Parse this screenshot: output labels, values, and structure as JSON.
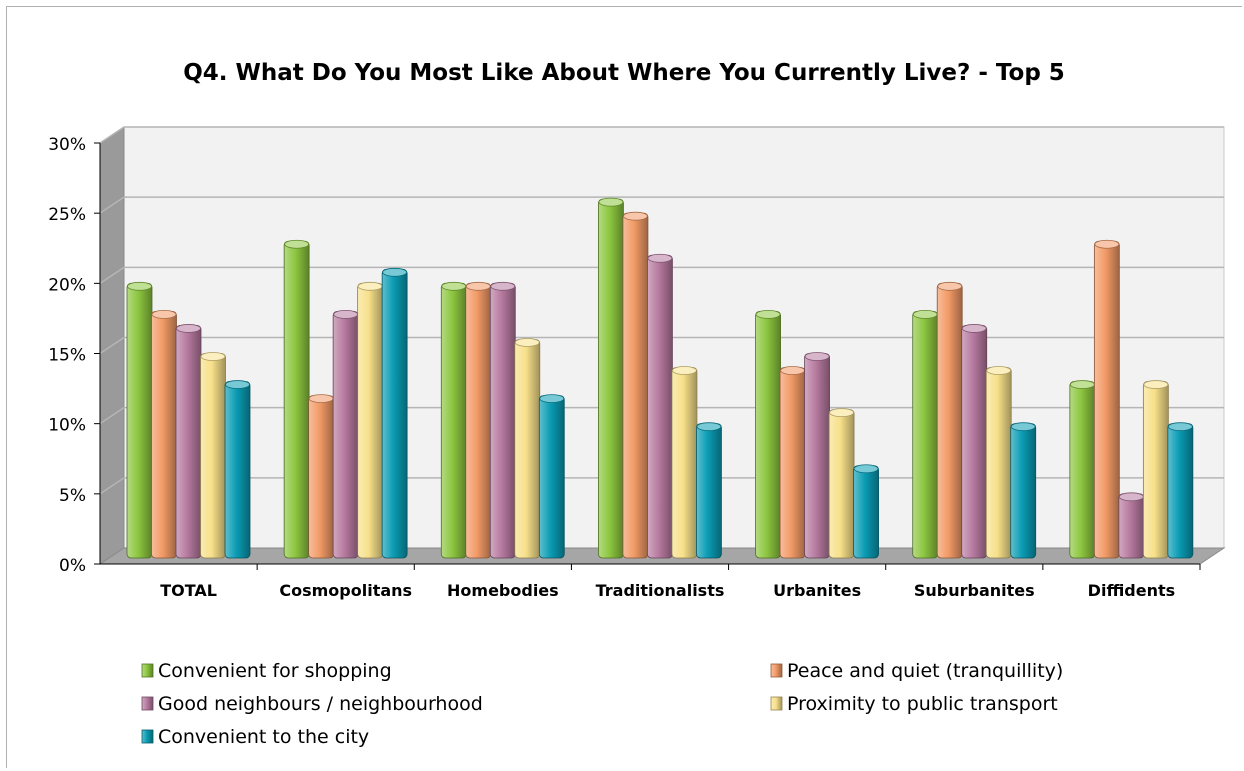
{
  "chart_data": {
    "type": "bar",
    "title": "Q4. What Do You Most Like About Where You Currently Live? - Top 5",
    "xlabel": "",
    "ylabel": "",
    "ylim": [
      0,
      30
    ],
    "y_ticks": [
      "0%",
      "5%",
      "10%",
      "15%",
      "20%",
      "25%",
      "30%"
    ],
    "y_tick_values": [
      0,
      5,
      10,
      15,
      20,
      25,
      30
    ],
    "grid": true,
    "legend_position": "bottom",
    "categories": [
      "TOTAL",
      "Cosmopolitans",
      "Homebodies",
      "Traditionalists",
      "Urbanites",
      "Suburbanites",
      "Diffidents"
    ],
    "series": [
      {
        "name": "Convenient for shopping",
        "color": "#8cc63f",
        "values": [
          20,
          23,
          20,
          26,
          18,
          18,
          13
        ]
      },
      {
        "name": "Peace and quiet (tranquillity)",
        "color": "#f29a66",
        "values": [
          18,
          12,
          20,
          25,
          14,
          20,
          23
        ]
      },
      {
        "name": "Good neighbours / neighbourhood",
        "color": "#b77aa0",
        "values": [
          17,
          18,
          20,
          22,
          15,
          17,
          5
        ]
      },
      {
        "name": "Proximity to public transport",
        "color": "#f7e08a",
        "values": [
          15,
          20,
          16,
          14,
          11,
          14,
          13
        ]
      },
      {
        "name": "Convenient to the city",
        "color": "#0a9cb4",
        "values": [
          13,
          21,
          12,
          10,
          7,
          10,
          10
        ]
      }
    ]
  }
}
